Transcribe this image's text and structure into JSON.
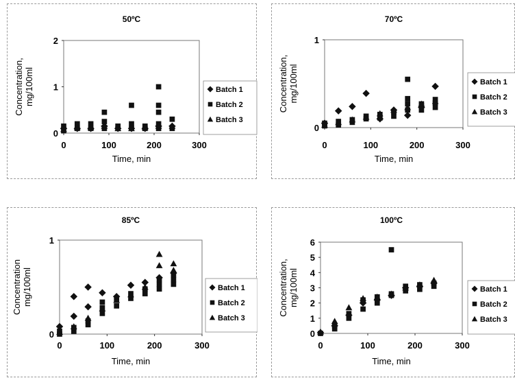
{
  "chart_data": [
    {
      "type": "scatter",
      "title": "50ºC",
      "xlabel": "Time, min",
      "ylabel": "Concentration, mg/100ml",
      "xlim": [
        0,
        300
      ],
      "ylim": [
        0,
        2
      ],
      "xticks": [
        "0",
        "100",
        "200",
        "300"
      ],
      "yticks": [
        "0",
        "1",
        "2"
      ],
      "legend_position": "right",
      "series": [
        {
          "name": "Batch 1",
          "marker": "diamond",
          "points": [
            [
              0,
              0.1
            ],
            [
              30,
              0.1
            ],
            [
              60,
              0.1
            ],
            [
              90,
              0.15
            ],
            [
              120,
              0.1
            ],
            [
              150,
              0.1
            ],
            [
              180,
              0.1
            ],
            [
              210,
              0.15
            ],
            [
              240,
              0.15
            ]
          ]
        },
        {
          "name": "Batch 2",
          "marker": "square",
          "points": [
            [
              0,
              0.05
            ],
            [
              0,
              0.15
            ],
            [
              30,
              0.1
            ],
            [
              30,
              0.2
            ],
            [
              60,
              0.1
            ],
            [
              60,
              0.2
            ],
            [
              90,
              0.1
            ],
            [
              90,
              0.25
            ],
            [
              90,
              0.45
            ],
            [
              120,
              0.1
            ],
            [
              120,
              0.15
            ],
            [
              150,
              0.1
            ],
            [
              150,
              0.2
            ],
            [
              150,
              0.6
            ],
            [
              180,
              0.1
            ],
            [
              180,
              0.15
            ],
            [
              210,
              0.1
            ],
            [
              210,
              0.2
            ],
            [
              210,
              0.45
            ],
            [
              210,
              0.6
            ],
            [
              210,
              1.0
            ],
            [
              240,
              0.1
            ],
            [
              240,
              0.3
            ]
          ]
        },
        {
          "name": "Batch 3",
          "marker": "triangle",
          "points": [
            [
              0,
              0.08
            ],
            [
              30,
              0.12
            ],
            [
              60,
              0.12
            ],
            [
              90,
              0.15
            ],
            [
              120,
              0.1
            ],
            [
              150,
              0.1
            ],
            [
              180,
              0.12
            ],
            [
              210,
              0.15
            ],
            [
              240,
              0.15
            ]
          ]
        }
      ]
    },
    {
      "type": "scatter",
      "title": "70ºC",
      "xlabel": "Time, min",
      "ylabel": "Concentration, mg/100ml",
      "xlim": [
        0,
        300
      ],
      "ylim": [
        0,
        1
      ],
      "xticks": [
        "0",
        "100",
        "200",
        "300"
      ],
      "yticks": [
        "0",
        "1"
      ],
      "legend_position": "right",
      "series": [
        {
          "name": "Batch 1",
          "marker": "diamond",
          "points": [
            [
              0,
              0.05
            ],
            [
              30,
              0.19
            ],
            [
              60,
              0.24
            ],
            [
              90,
              0.39
            ],
            [
              120,
              0.1
            ],
            [
              150,
              0.2
            ],
            [
              180,
              0.14
            ],
            [
              210,
              0.23
            ],
            [
              240,
              0.47
            ]
          ]
        },
        {
          "name": "Batch 2",
          "marker": "square",
          "points": [
            [
              0,
              0.02
            ],
            [
              0,
              0.05
            ],
            [
              30,
              0.03
            ],
            [
              30,
              0.07
            ],
            [
              60,
              0.06
            ],
            [
              60,
              0.09
            ],
            [
              90,
              0.1
            ],
            [
              90,
              0.13
            ],
            [
              120,
              0.11
            ],
            [
              120,
              0.15
            ],
            [
              150,
              0.13
            ],
            [
              150,
              0.18
            ],
            [
              180,
              0.2
            ],
            [
              180,
              0.27
            ],
            [
              180,
              0.33
            ],
            [
              180,
              0.55
            ],
            [
              210,
              0.2
            ],
            [
              210,
              0.25
            ],
            [
              210,
              0.27
            ],
            [
              240,
              0.23
            ],
            [
              240,
              0.28
            ],
            [
              240,
              0.32
            ]
          ]
        },
        {
          "name": "Batch 3",
          "marker": "triangle",
          "points": [
            [
              0,
              0.03
            ],
            [
              30,
              0.06
            ],
            [
              60,
              0.09
            ],
            [
              90,
              0.12
            ],
            [
              120,
              0.16
            ],
            [
              150,
              0.2
            ],
            [
              180,
              0.23
            ],
            [
              210,
              0.27
            ],
            [
              240,
              0.3
            ]
          ]
        }
      ]
    },
    {
      "type": "scatter",
      "title": "85ºC",
      "xlabel": "Time, min",
      "ylabel": "Concentration mg/100ml",
      "xlim": [
        0,
        300
      ],
      "ylim": [
        0,
        1
      ],
      "xticks": [
        "0",
        "100",
        "200",
        "300"
      ],
      "yticks": [
        "0",
        "1"
      ],
      "legend_position": "right",
      "series": [
        {
          "name": "Batch 1",
          "marker": "diamond",
          "points": [
            [
              0,
              0.08
            ],
            [
              30,
              0.4
            ],
            [
              30,
              0.19
            ],
            [
              60,
              0.5
            ],
            [
              60,
              0.29
            ],
            [
              90,
              0.44
            ],
            [
              120,
              0.4
            ],
            [
              150,
              0.52
            ],
            [
              180,
              0.55
            ],
            [
              210,
              0.6
            ],
            [
              240,
              0.65
            ]
          ]
        },
        {
          "name": "Batch 2",
          "marker": "square",
          "points": [
            [
              0,
              0
            ],
            [
              0,
              0.03
            ],
            [
              30,
              0.03
            ],
            [
              30,
              0.07
            ],
            [
              60,
              0.1
            ],
            [
              60,
              0.14
            ],
            [
              90,
              0.22
            ],
            [
              90,
              0.28
            ],
            [
              90,
              0.34
            ],
            [
              120,
              0.3
            ],
            [
              120,
              0.36
            ],
            [
              150,
              0.38
            ],
            [
              150,
              0.43
            ],
            [
              180,
              0.43
            ],
            [
              180,
              0.48
            ],
            [
              210,
              0.48
            ],
            [
              210,
              0.53
            ],
            [
              210,
              0.58
            ],
            [
              240,
              0.53
            ],
            [
              240,
              0.58
            ],
            [
              240,
              0.63
            ]
          ]
        },
        {
          "name": "Batch 3",
          "marker": "triangle",
          "points": [
            [
              0,
              0.02
            ],
            [
              30,
              0.08
            ],
            [
              60,
              0.17
            ],
            [
              90,
              0.27
            ],
            [
              120,
              0.36
            ],
            [
              150,
              0.42
            ],
            [
              180,
              0.5
            ],
            [
              210,
              0.85
            ],
            [
              210,
              0.73
            ],
            [
              240,
              0.75
            ],
            [
              240,
              0.68
            ]
          ]
        }
      ]
    },
    {
      "type": "scatter",
      "title": "100ºC",
      "xlabel": "Time, min",
      "ylabel": "Concentration, mg/100ml",
      "xlim": [
        0,
        300
      ],
      "ylim": [
        0,
        6
      ],
      "xticks": [
        "0",
        "100",
        "200",
        "300"
      ],
      "yticks": [
        "0",
        "1",
        "2",
        "3",
        "4",
        "5",
        "6"
      ],
      "legend_position": "right",
      "series": [
        {
          "name": "Batch 1",
          "marker": "diamond",
          "points": [
            [
              0,
              0.05
            ],
            [
              30,
              0.5
            ],
            [
              60,
              1.2
            ],
            [
              90,
              2.0
            ],
            [
              120,
              2.2
            ],
            [
              150,
              2.5
            ],
            [
              180,
              3.0
            ],
            [
              210,
              3.1
            ],
            [
              240,
              3.3
            ]
          ]
        },
        {
          "name": "Batch 2",
          "marker": "square",
          "points": [
            [
              0,
              0
            ],
            [
              30,
              0.3
            ],
            [
              30,
              0.5
            ],
            [
              60,
              1.0
            ],
            [
              60,
              1.3
            ],
            [
              90,
              1.6
            ],
            [
              90,
              2.2
            ],
            [
              120,
              2.0
            ],
            [
              120,
              2.4
            ],
            [
              150,
              2.5
            ],
            [
              150,
              2.6
            ],
            [
              150,
              5.5
            ],
            [
              180,
              2.8
            ],
            [
              180,
              3.1
            ],
            [
              210,
              2.9
            ],
            [
              210,
              3.2
            ],
            [
              240,
              3.1
            ],
            [
              240,
              3.3
            ]
          ]
        },
        {
          "name": "Batch 3",
          "marker": "triangle",
          "points": [
            [
              0,
              0.1
            ],
            [
              30,
              0.8
            ],
            [
              60,
              1.7
            ],
            [
              90,
              2.3
            ],
            [
              120,
              2.4
            ],
            [
              150,
              2.6
            ],
            [
              180,
              3.0
            ],
            [
              210,
              3.2
            ],
            [
              240,
              3.5
            ]
          ]
        }
      ]
    }
  ]
}
